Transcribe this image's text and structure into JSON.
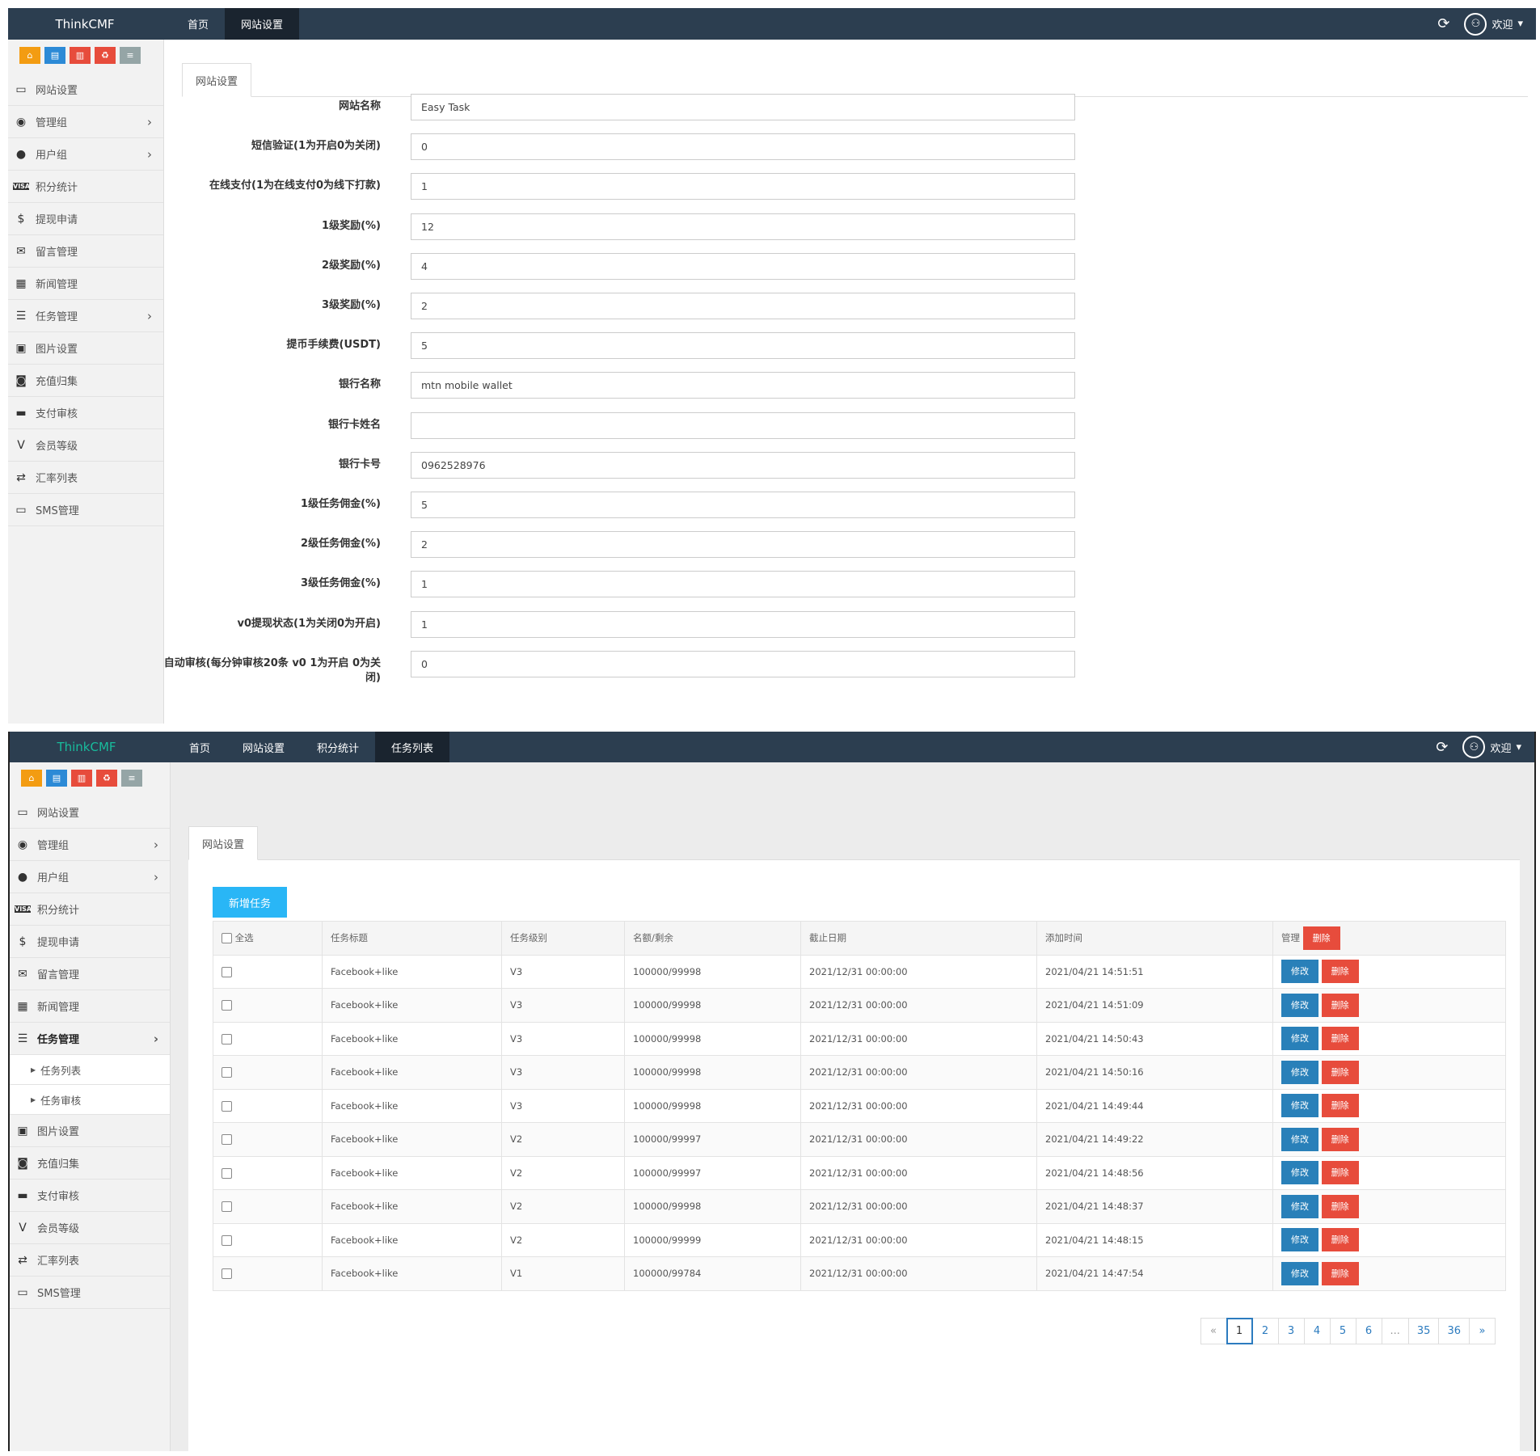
{
  "app": {
    "brand": "ThinkCMF",
    "welcome": "欢迎"
  },
  "shortcuts": [
    "home-icon",
    "file-icon",
    "trash-icon",
    "recycle-icon",
    "list-icon"
  ],
  "top_menu_1": [
    "首页",
    "网站设置"
  ],
  "top_menu_2": [
    "首页",
    "网站设置",
    "积分统计",
    "任务列表"
  ],
  "sidebar": {
    "items": [
      {
        "label": "网站设置",
        "icon": "monitor-icon"
      },
      {
        "label": "管理组",
        "icon": "user-circle-icon"
      },
      {
        "label": "用户组",
        "icon": "user-icon"
      },
      {
        "label": "积分统计",
        "icon": "visa-icon"
      },
      {
        "label": "提现申请",
        "icon": "dollar-icon"
      },
      {
        "label": "留言管理",
        "icon": "envelope-icon"
      },
      {
        "label": "新闻管理",
        "icon": "newspaper-icon"
      },
      {
        "label": "任务管理",
        "icon": "tasks-icon"
      },
      {
        "label": "图片设置",
        "icon": "image-icon"
      },
      {
        "label": "充值归集",
        "icon": "money-icon"
      },
      {
        "label": "支付审核",
        "icon": "id-card-icon"
      },
      {
        "label": "会员等级",
        "icon": "vimeo-icon"
      },
      {
        "label": "汇率列表",
        "icon": "exchange-icon"
      },
      {
        "label": "SMS管理",
        "icon": "monitor-icon"
      }
    ],
    "sub_items": [
      "任务列表",
      "任务审核"
    ]
  },
  "settings": {
    "tab": "网站设置",
    "fields": [
      {
        "label": "网站名称",
        "value": "Easy Task"
      },
      {
        "label": "短信验证(1为开启0为关闭)",
        "value": "0"
      },
      {
        "label": "在线支付(1为在线支付0为线下打款)",
        "value": "1"
      },
      {
        "label": "1级奖励(%)",
        "value": "12"
      },
      {
        "label": "2级奖励(%)",
        "value": "4"
      },
      {
        "label": "3级奖励(%)",
        "value": "2"
      },
      {
        "label": "提币手续费(USDT)",
        "value": "5"
      },
      {
        "label": "银行名称",
        "value": "mtn mobile wallet"
      },
      {
        "label": "银行卡姓名",
        "value": ""
      },
      {
        "label": "银行卡号",
        "value": "0962528976"
      },
      {
        "label": "1级任务佣金(%)",
        "value": "5"
      },
      {
        "label": "2级任务佣金(%)",
        "value": "2"
      },
      {
        "label": "3级任务佣金(%)",
        "value": "1"
      },
      {
        "label": "v0提现状态(1为关闭0为开启)",
        "value": "1"
      },
      {
        "label": "自动审核(每分钟审核20条 v0 1为开启 0为关闭)",
        "value": "0"
      }
    ]
  },
  "tasks": {
    "tab": "网站设置",
    "add_label": "新增任务",
    "headers": {
      "select_all": "全选",
      "title": "任务标题",
      "level": "任务级别",
      "quota": "名额/剩余",
      "deadline": "截止日期",
      "added": "添加时间",
      "manage": "管理",
      "bulk_delete": "删除"
    },
    "edit_label": "修改",
    "delete_label": "删除",
    "rows": [
      {
        "title": "Facebook+like",
        "level": "V3",
        "quota": "100000/99998",
        "deadline": "2021/12/31 00:00:00",
        "added": "2021/04/21 14:51:51"
      },
      {
        "title": "Facebook+like",
        "level": "V3",
        "quota": "100000/99998",
        "deadline": "2021/12/31 00:00:00",
        "added": "2021/04/21 14:51:09"
      },
      {
        "title": "Facebook+like",
        "level": "V3",
        "quota": "100000/99998",
        "deadline": "2021/12/31 00:00:00",
        "added": "2021/04/21 14:50:43"
      },
      {
        "title": "Facebook+like",
        "level": "V3",
        "quota": "100000/99998",
        "deadline": "2021/12/31 00:00:00",
        "added": "2021/04/21 14:50:16"
      },
      {
        "title": "Facebook+like",
        "level": "V3",
        "quota": "100000/99998",
        "deadline": "2021/12/31 00:00:00",
        "added": "2021/04/21 14:49:44"
      },
      {
        "title": "Facebook+like",
        "level": "V2",
        "quota": "100000/99997",
        "deadline": "2021/12/31 00:00:00",
        "added": "2021/04/21 14:49:22"
      },
      {
        "title": "Facebook+like",
        "level": "V2",
        "quota": "100000/99997",
        "deadline": "2021/12/31 00:00:00",
        "added": "2021/04/21 14:48:56"
      },
      {
        "title": "Facebook+like",
        "level": "V2",
        "quota": "100000/99998",
        "deadline": "2021/12/31 00:00:00",
        "added": "2021/04/21 14:48:37"
      },
      {
        "title": "Facebook+like",
        "level": "V2",
        "quota": "100000/99999",
        "deadline": "2021/12/31 00:00:00",
        "added": "2021/04/21 14:48:15"
      },
      {
        "title": "Facebook+like",
        "level": "V1",
        "quota": "100000/99784",
        "deadline": "2021/12/31 00:00:00",
        "added": "2021/04/21 14:47:54"
      }
    ],
    "pagination": [
      "«",
      "1",
      "2",
      "3",
      "4",
      "5",
      "6",
      "...",
      "35",
      "36",
      "»"
    ],
    "current_page": "1"
  },
  "colors": {
    "navbar": "#2c3e50",
    "brand_alt": "#18bc9c",
    "primary": "#2980b9",
    "danger": "#e74c3c",
    "info": "#29b6f6"
  }
}
